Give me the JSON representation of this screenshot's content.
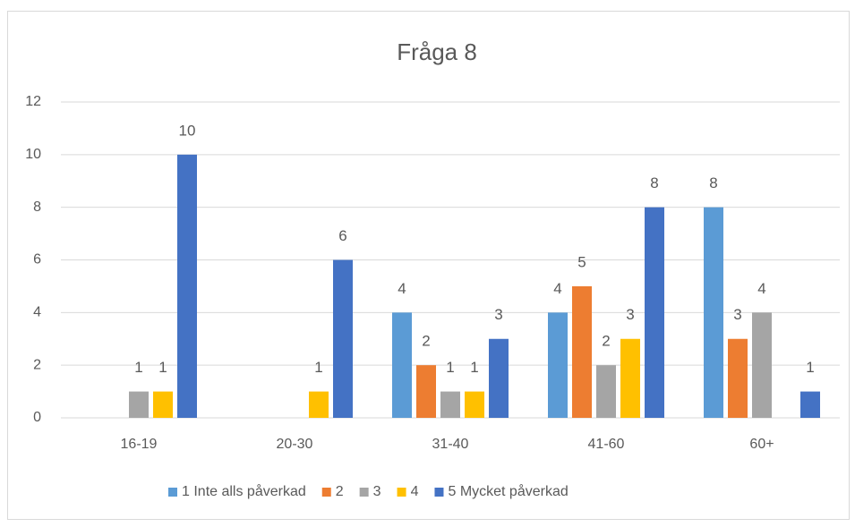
{
  "chart_data": {
    "type": "bar",
    "title": "Fråga 8",
    "categories": [
      "16-19",
      "20-30",
      "31-40",
      "41-60",
      "60+"
    ],
    "series": [
      {
        "name": "1 Inte alls påverkad",
        "color": "#5b9bd5",
        "values": [
          null,
          null,
          4,
          4,
          8
        ]
      },
      {
        "name": "2",
        "color": "#ed7d31",
        "values": [
          null,
          null,
          2,
          5,
          3
        ]
      },
      {
        "name": "3",
        "color": "#a5a5a5",
        "values": [
          1,
          null,
          1,
          2,
          4
        ]
      },
      {
        "name": "4",
        "color": "#ffc000",
        "values": [
          1,
          1,
          1,
          3,
          null
        ]
      },
      {
        "name": "5 Mycket påverkad",
        "color": "#4472c4",
        "values": [
          10,
          6,
          3,
          8,
          1
        ]
      }
    ],
    "ylim": [
      0,
      12
    ],
    "yticks": [
      0,
      2,
      4,
      6,
      8,
      10,
      12
    ],
    "grid": true,
    "legend": "bottom"
  }
}
